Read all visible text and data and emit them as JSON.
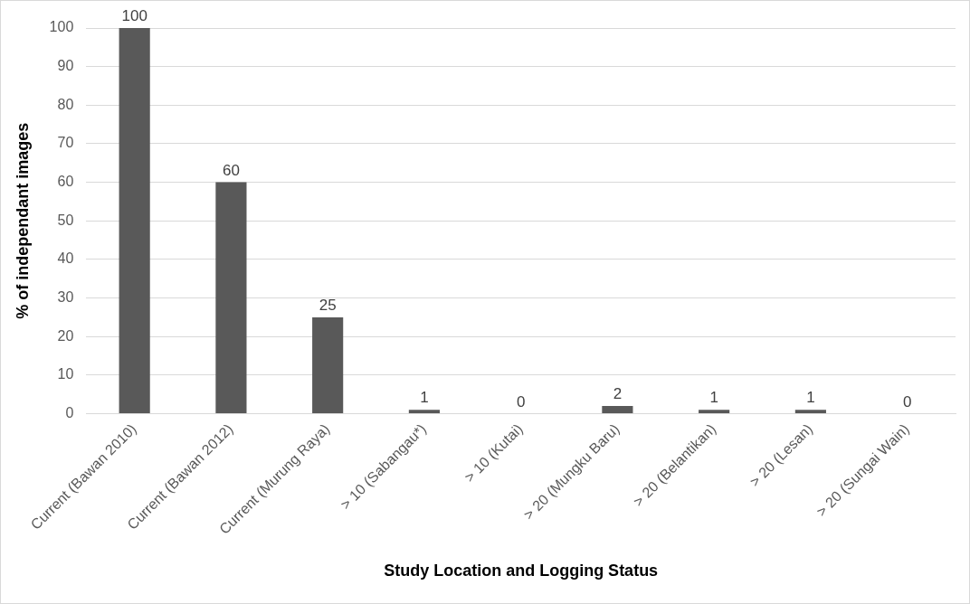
{
  "chart_data": {
    "type": "bar",
    "xlabel": "Study Location and Logging Status",
    "ylabel": "% of independant images",
    "categories": [
      "Current (Bawan 2010)",
      "Current (Bawan 2012)",
      "Current (Murung Raya)",
      "> 10 (Sabangau*)",
      "> 10 (Kutai)",
      "> 20 (Mungku Baru)",
      "> 20 (Belantikan)",
      "> 20 (Lesan)",
      "> 20 (Sungai Wain)"
    ],
    "values": [
      100,
      60,
      25,
      1,
      0,
      2,
      1,
      1,
      0
    ],
    "color": "#595959",
    "ylim": [
      0,
      100
    ],
    "yticks": [
      0,
      10,
      20,
      30,
      40,
      50,
      60,
      70,
      80,
      90,
      100
    ],
    "grid": "y",
    "data_labels": true
  }
}
